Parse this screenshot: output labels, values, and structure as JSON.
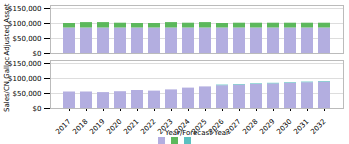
{
  "chart_data": [
    {
      "type": "bar",
      "stacked": true,
      "grid": true,
      "tick_labels": "y",
      "ylabel": "Adjusted Asset",
      "categories": [
        "2017",
        "2018",
        "2019",
        "2020",
        "2021",
        "2022",
        "2023",
        "2024",
        "2025",
        "2026",
        "2027",
        "2028",
        "2029",
        "2030",
        "2031",
        "2032"
      ],
      "series": [
        {
          "color": "#b3aee0",
          "values": [
            85000,
            85000,
            85000,
            85000,
            85000,
            85000,
            85000,
            85000,
            85000,
            85000,
            85000,
            85000,
            85000,
            85000,
            85000,
            85000
          ]
        },
        {
          "color": "#5cb85c",
          "values": [
            15000,
            18000,
            18000,
            16000,
            15000,
            15000,
            18000,
            16000,
            18000,
            15000,
            16000,
            16000,
            16000,
            16000,
            16000,
            16000
          ]
        }
      ],
      "ylim": [
        0,
        160000
      ],
      "yticks": [
        {
          "value": 0,
          "label": "$0"
        },
        {
          "value": 50000,
          "label": "$50,000"
        },
        {
          "value": 100000,
          "label": "$100,000"
        },
        {
          "value": 150000,
          "label": "$150,000"
        }
      ]
    },
    {
      "type": "bar",
      "stacked": true,
      "grid": true,
      "legend": "bottom",
      "ylabel": "Sales/CN Galloc",
      "xlabel": "Year/Forecast Year",
      "categories": [
        "2017",
        "2018",
        "2019",
        "2020",
        "2021",
        "2022",
        "2023",
        "2024",
        "2025",
        "2026",
        "2027",
        "2028",
        "2029",
        "2030",
        "2031",
        "2032"
      ],
      "series": [
        {
          "color": "#b3aee0",
          "values": [
            55000,
            55000,
            53000,
            56000,
            60000,
            58000,
            62000,
            68000,
            72000,
            76000,
            78000,
            80000,
            82000,
            84000,
            86000,
            88000
          ]
        },
        {
          "color": "#5bc0c0",
          "values": [
            0,
            0,
            0,
            0,
            0,
            0,
            0,
            0,
            0,
            2000,
            2000,
            2000,
            2000,
            2000,
            2000,
            2000
          ]
        }
      ],
      "ylim": [
        0,
        160000
      ],
      "yticks": [
        {
          "value": 0,
          "label": "$0"
        },
        {
          "value": 50000,
          "label": "$50,000"
        },
        {
          "value": 100000,
          "label": "$100,000"
        },
        {
          "value": 150000,
          "label": "$150,000"
        }
      ]
    }
  ]
}
